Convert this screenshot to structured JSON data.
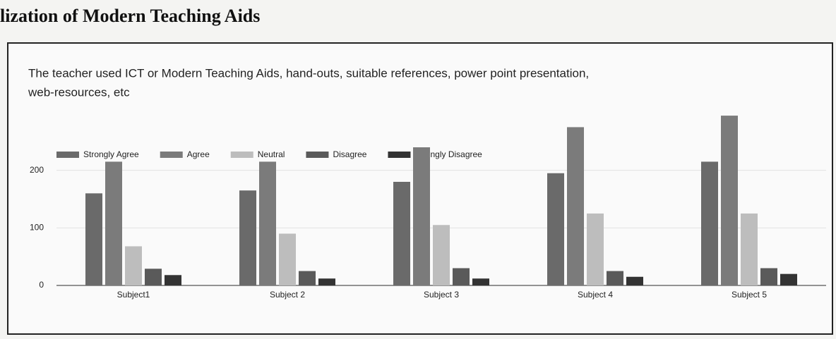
{
  "heading": "lization of Modern Teaching Aids",
  "chart_data": {
    "type": "bar",
    "title": [
      "The teacher used ICT or Modern Teaching Aids, hand-outs, suitable references, power point presentation,",
      "web-resources, etc"
    ],
    "categories": [
      "Subject1",
      "Subject 2",
      "Subject 3",
      "Subject 4",
      "Subject 5"
    ],
    "series": [
      {
        "name": "Strongly Agree",
        "color": "#6a6a6a",
        "values": [
          160,
          165,
          180,
          195,
          215
        ]
      },
      {
        "name": "Agree",
        "color": "#7b7b7b",
        "values": [
          215,
          215,
          240,
          275,
          295
        ]
      },
      {
        "name": "Neutral",
        "color": "#bdbdbd",
        "values": [
          68,
          90,
          105,
          125,
          125
        ]
      },
      {
        "name": "Disagree",
        "color": "#5a5a5a",
        "values": [
          29,
          25,
          30,
          25,
          30
        ]
      },
      {
        "name": "Strongly Disagree",
        "color": "#333333",
        "values": [
          18,
          12,
          12,
          15,
          20
        ]
      }
    ],
    "ylim": [
      0,
      300
    ],
    "yticks": [
      0,
      100,
      200
    ],
    "grid": true,
    "legend": "top-left"
  }
}
